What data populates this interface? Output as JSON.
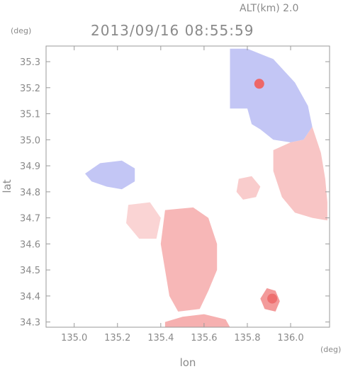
{
  "header": {
    "altitude_label": "ALT(km) 2.0",
    "timestamp": "2013/09/16 08:55:59"
  },
  "chart_data": {
    "type": "heatmap",
    "title": "2013/09/16 08:55:59",
    "xlabel": "lon",
    "ylabel": "lat",
    "x_unit": "(deg)",
    "y_unit": "(deg)",
    "xlim": [
      134.87,
      136.18
    ],
    "ylim": [
      34.28,
      35.36
    ],
    "x_ticks": [
      135.0,
      135.2,
      135.4,
      135.6,
      135.8,
      136.0
    ],
    "x_tick_labels": [
      "135.0",
      "135.2",
      "135.4",
      "135.6",
      "135.8",
      "136.0"
    ],
    "y_ticks": [
      34.3,
      34.4,
      34.5,
      34.6,
      34.7,
      34.8,
      34.9,
      35.0,
      35.1,
      35.2,
      35.3
    ],
    "y_tick_labels": [
      "34.3",
      "34.4",
      "34.5",
      "34.6",
      "34.7",
      "34.8",
      "34.9",
      "35.0",
      "35.1",
      "35.2",
      "35.3"
    ],
    "grid": false,
    "colors": {
      "approaching": "#6b72e6",
      "receding": "#ec5f5f",
      "neutral": "#ffffff",
      "frame": "#9a9a9a"
    },
    "regions": [
      {
        "name": "north-approaching",
        "sign": -1,
        "intensity": 0.45,
        "polygon": [
          [
            135.72,
            35.35
          ],
          [
            135.8,
            35.35
          ],
          [
            135.92,
            35.31
          ],
          [
            136.02,
            35.22
          ],
          [
            136.08,
            35.13
          ],
          [
            136.1,
            35.05
          ],
          [
            136.06,
            35.0
          ],
          [
            136.0,
            34.99
          ],
          [
            135.92,
            35.0
          ],
          [
            135.86,
            35.04
          ],
          [
            135.82,
            35.06
          ],
          [
            135.8,
            35.12
          ],
          [
            135.72,
            35.12
          ],
          [
            135.72,
            35.2
          ],
          [
            135.72,
            35.28
          ]
        ]
      },
      {
        "name": "east-receding",
        "sign": 1,
        "intensity": 0.4,
        "polygon": [
          [
            136.06,
            35.0
          ],
          [
            136.1,
            35.05
          ],
          [
            136.14,
            34.95
          ],
          [
            136.16,
            34.85
          ],
          [
            136.17,
            34.76
          ],
          [
            136.17,
            34.69
          ],
          [
            136.1,
            34.7
          ],
          [
            136.02,
            34.72
          ],
          [
            135.96,
            34.78
          ],
          [
            135.92,
            34.88
          ],
          [
            135.92,
            34.96
          ],
          [
            136.0,
            34.99
          ]
        ]
      },
      {
        "name": "west-approaching-cell",
        "sign": -1,
        "intensity": 0.45,
        "polygon": [
          [
            135.05,
            34.87
          ],
          [
            135.12,
            34.91
          ],
          [
            135.22,
            34.92
          ],
          [
            135.28,
            34.89
          ],
          [
            135.28,
            34.84
          ],
          [
            135.22,
            34.81
          ],
          [
            135.15,
            34.82
          ],
          [
            135.08,
            34.84
          ]
        ]
      },
      {
        "name": "central-receding-cluster",
        "sign": 1,
        "intensity": 0.5,
        "polygon": [
          [
            135.42,
            34.73
          ],
          [
            135.55,
            34.74
          ],
          [
            135.62,
            34.7
          ],
          [
            135.66,
            34.6
          ],
          [
            135.66,
            34.5
          ],
          [
            135.62,
            34.42
          ],
          [
            135.58,
            34.35
          ],
          [
            135.48,
            34.34
          ],
          [
            135.44,
            34.4
          ],
          [
            135.42,
            34.5
          ],
          [
            135.4,
            34.6
          ]
        ]
      },
      {
        "name": "south-edge-receding",
        "sign": 1,
        "intensity": 0.55,
        "polygon": [
          [
            135.42,
            34.3
          ],
          [
            135.5,
            34.32
          ],
          [
            135.6,
            34.33
          ],
          [
            135.7,
            34.31
          ],
          [
            135.72,
            34.28
          ],
          [
            135.42,
            34.28
          ]
        ]
      },
      {
        "name": "west-receding-patch",
        "sign": 1,
        "intensity": 0.3,
        "polygon": [
          [
            135.25,
            34.75
          ],
          [
            135.35,
            34.76
          ],
          [
            135.4,
            34.7
          ],
          [
            135.38,
            34.62
          ],
          [
            135.3,
            34.62
          ],
          [
            135.24,
            34.68
          ]
        ]
      },
      {
        "name": "southeast-receding-cell",
        "sign": 1,
        "intensity": 0.7,
        "polygon": [
          [
            135.89,
            34.43
          ],
          [
            135.93,
            34.42
          ],
          [
            135.95,
            34.38
          ],
          [
            135.93,
            34.34
          ],
          [
            135.88,
            34.35
          ],
          [
            135.86,
            34.39
          ]
        ]
      },
      {
        "name": "central-east-receding",
        "sign": 1,
        "intensity": 0.35,
        "polygon": [
          [
            135.76,
            34.85
          ],
          [
            135.82,
            34.86
          ],
          [
            135.86,
            34.82
          ],
          [
            135.84,
            34.78
          ],
          [
            135.78,
            34.77
          ],
          [
            135.75,
            34.8
          ]
        ]
      }
    ],
    "features": [
      {
        "name": "strong-core-north",
        "lon": 135.855,
        "lat": 35.215,
        "value": 0.95
      },
      {
        "name": "strong-core-southeast",
        "lon": 135.915,
        "lat": 34.39,
        "value": 0.9
      }
    ]
  }
}
